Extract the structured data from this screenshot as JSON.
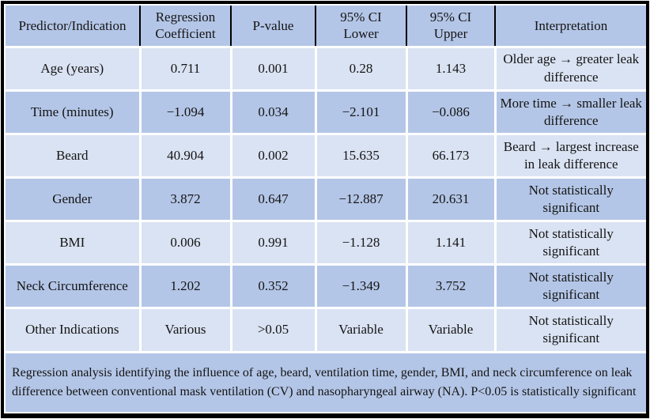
{
  "colors": {
    "row_light": "#dae3f3",
    "row_medium": "#b4c6e7",
    "outer_border": "#000000",
    "cell_divider": "#ffffff",
    "header_divider": "#000000",
    "text": "#141414"
  },
  "table": {
    "columns": [
      {
        "key": "predictor",
        "label": "Predictor/Indication"
      },
      {
        "key": "coefficient",
        "label": "Regression\nCoefficient"
      },
      {
        "key": "p_value",
        "label": "P-value"
      },
      {
        "key": "ci_lower",
        "label": "95% CI\nLower"
      },
      {
        "key": "ci_upper",
        "label": "95% CI\nUpper"
      },
      {
        "key": "interpretation",
        "label": "Interpretation"
      }
    ],
    "rows": [
      {
        "predictor": "Age (years)",
        "coefficient": "0.711",
        "p_value": "0.001",
        "ci_lower": "0.28",
        "ci_upper": "1.143",
        "interpretation": "Older age → greater leak difference"
      },
      {
        "predictor": "Time (minutes)",
        "coefficient": "−1.094",
        "p_value": "0.034",
        "ci_lower": "−2.101",
        "ci_upper": "−0.086",
        "interpretation": "More time → smaller leak difference"
      },
      {
        "predictor": "Beard",
        "coefficient": "40.904",
        "p_value": "0.002",
        "ci_lower": "15.635",
        "ci_upper": "66.173",
        "interpretation": "Beard → largest increase in leak difference"
      },
      {
        "predictor": "Gender",
        "coefficient": "3.872",
        "p_value": "0.647",
        "ci_lower": "−12.887",
        "ci_upper": "20.631",
        "interpretation": "Not statistically significant"
      },
      {
        "predictor": "BMI",
        "coefficient": "0.006",
        "p_value": "0.991",
        "ci_lower": "−1.128",
        "ci_upper": "1.141",
        "interpretation": "Not statistically significant"
      },
      {
        "predictor": "Neck Circumference",
        "coefficient": "1.202",
        "p_value": "0.352",
        "ci_lower": "−1.349",
        "ci_upper": "3.752",
        "interpretation": "Not statistically significant"
      },
      {
        "predictor": "Other Indications",
        "coefficient": "Various",
        "p_value": ">0.05",
        "ci_lower": "Variable",
        "ci_upper": "Variable",
        "interpretation": "Not statistically significant"
      }
    ],
    "caption": "Regression analysis identifying the influence of age, beard, ventilation time, gender, BMI, and neck circumference on leak difference between conventional mask ventilation (CV) and nasopharyngeal airway (NA). P<0.05 is statistically significant"
  }
}
